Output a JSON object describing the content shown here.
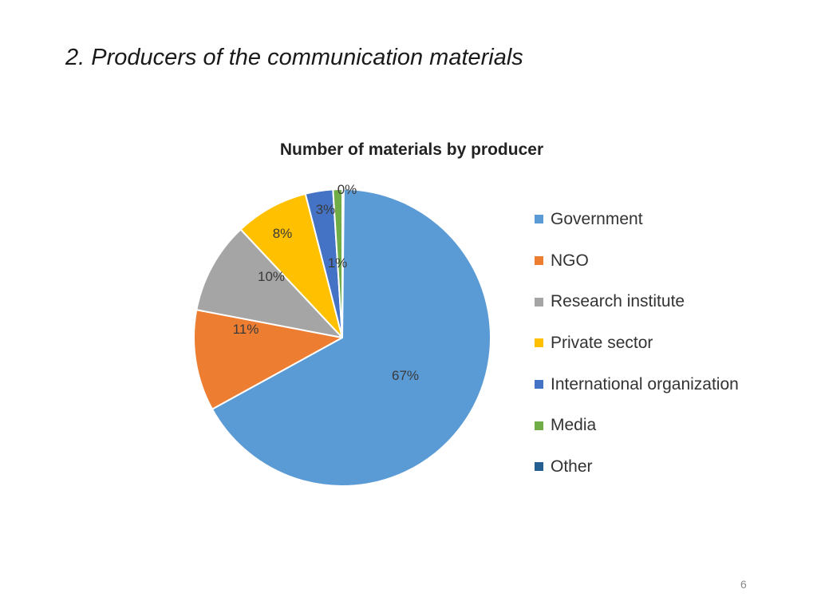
{
  "slide": {
    "title": "2. Producers of the communication materials",
    "page_number": "6"
  },
  "chart_data": {
    "type": "pie",
    "title": "Number of materials by producer",
    "categories": [
      "Government",
      "NGO",
      "Research institute",
      "Private sector",
      "International organization",
      "Media",
      "Other"
    ],
    "values": [
      67,
      11,
      10,
      8,
      3,
      1,
      0
    ],
    "data_labels": [
      "67%",
      "11%",
      "10%",
      "8%",
      "3%",
      "1%",
      "0%"
    ],
    "colors": [
      "#5b9bd5",
      "#ed7d31",
      "#a5a5a5",
      "#ffc000",
      "#4472c4",
      "#70ad47",
      "#255e91"
    ],
    "legend_position": "right",
    "start_angle_deg": 0,
    "direction": "clockwise",
    "xlabel": "",
    "ylabel": ""
  }
}
